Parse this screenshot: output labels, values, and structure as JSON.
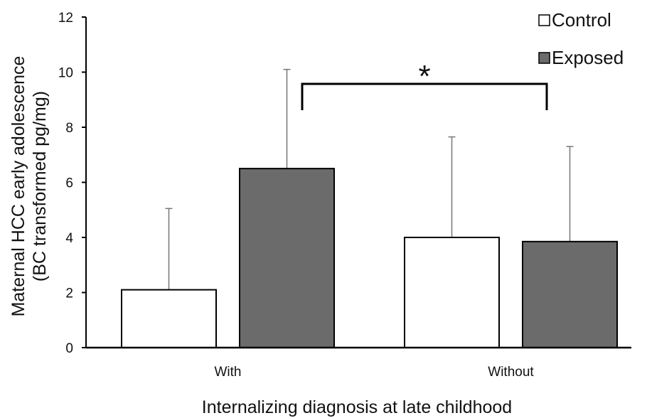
{
  "chart_data": {
    "type": "bar",
    "xlabel": "Internalizing diagnosis at late childhood",
    "ylabel_lines": [
      "Maternal HCC early adolescence",
      "(BC transformed pg/mg)"
    ],
    "categories": [
      "With",
      "Without"
    ],
    "ylim": [
      0,
      12
    ],
    "yticks": [
      0,
      2,
      4,
      6,
      8,
      10,
      12
    ],
    "grid": false,
    "legend_position": "top-right",
    "series": [
      {
        "name": "Control",
        "color": "#ffffff",
        "values": [
          2.1,
          4.0
        ],
        "error_upper": [
          5.05,
          7.65
        ]
      },
      {
        "name": "Exposed",
        "color": "#6b6b6b",
        "values": [
          6.5,
          3.85
        ],
        "error_upper": [
          10.1,
          7.3
        ]
      }
    ],
    "annotation": {
      "text": "*",
      "between": [
        "With Exposed",
        "Without Control"
      ]
    }
  }
}
